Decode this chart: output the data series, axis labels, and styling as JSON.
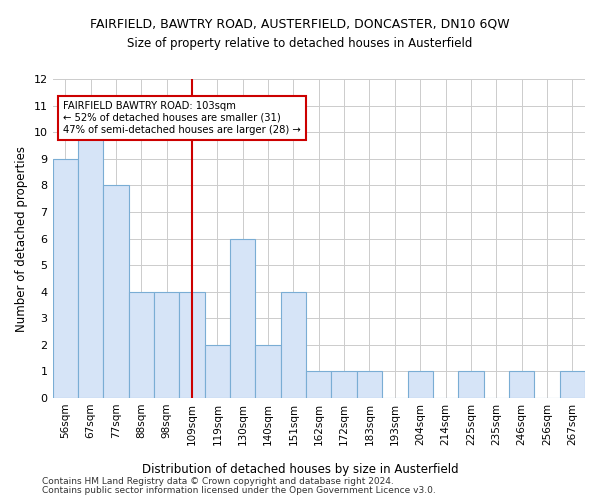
{
  "title": "FAIRFIELD, BAWTRY ROAD, AUSTERFIELD, DONCASTER, DN10 6QW",
  "subtitle": "Size of property relative to detached houses in Austerfield",
  "xlabel": "Distribution of detached houses by size in Austerfield",
  "ylabel": "Number of detached properties",
  "categories": [
    "56sqm",
    "67sqm",
    "77sqm",
    "88sqm",
    "98sqm",
    "109sqm",
    "119sqm",
    "130sqm",
    "140sqm",
    "151sqm",
    "162sqm",
    "172sqm",
    "183sqm",
    "193sqm",
    "204sqm",
    "214sqm",
    "225sqm",
    "235sqm",
    "246sqm",
    "256sqm",
    "267sqm"
  ],
  "values": [
    9,
    10,
    8,
    4,
    4,
    4,
    2,
    6,
    2,
    4,
    1,
    1,
    1,
    0,
    1,
    0,
    1,
    0,
    1,
    0,
    1
  ],
  "bar_color": "#d6e4f7",
  "bar_edge_color": "#7aadd4",
  "vline_x": 5,
  "vline_color": "#cc0000",
  "annotation_text": "FAIRFIELD BAWTRY ROAD: 103sqm\n← 52% of detached houses are smaller (31)\n47% of semi-detached houses are larger (28) →",
  "annotation_box_color": "#cc0000",
  "ylim": [
    0,
    12
  ],
  "yticks": [
    0,
    1,
    2,
    3,
    4,
    5,
    6,
    7,
    8,
    9,
    10,
    11,
    12
  ],
  "footnote1": "Contains HM Land Registry data © Crown copyright and database right 2024.",
  "footnote2": "Contains public sector information licensed under the Open Government Licence v3.0.",
  "bg_color": "#ffffff",
  "grid_color": "#cccccc",
  "figwidth": 6.0,
  "figheight": 5.0,
  "dpi": 100
}
